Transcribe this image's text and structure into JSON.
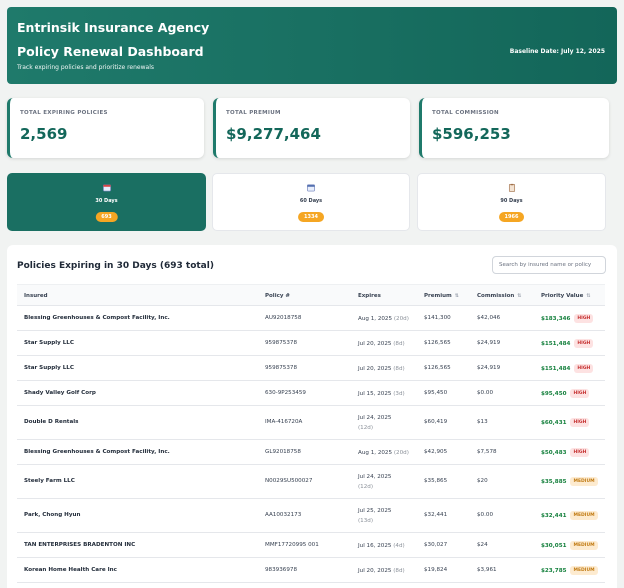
{
  "header": {
    "agency": "Entrinsik Insurance Agency",
    "title": "Policy Renewal Dashboard",
    "subtitle": "Track expiring policies and prioritize renewals",
    "baseline": "Baseline Date: July 12, 2025"
  },
  "stats": [
    {
      "label": "TOTAL EXPIRING POLICIES",
      "value": "2,569"
    },
    {
      "label": "TOTAL PREMIUM",
      "value": "$9,277,464"
    },
    {
      "label": "TOTAL COMMISSION",
      "value": "$596,253"
    }
  ],
  "tabs": [
    {
      "label": "30 Days",
      "count": "693",
      "icon": "calendar-icon",
      "active": true
    },
    {
      "label": "60 Days",
      "count": "1334",
      "icon": "calendar-icon",
      "active": false
    },
    {
      "label": "90 Days",
      "count": "1966",
      "icon": "clipboard-icon",
      "active": false
    }
  ],
  "table": {
    "title": "Policies Expiring in 30 Days (693 total)",
    "search_placeholder": "Search by insured name or policy",
    "columns": [
      "Insured",
      "Policy #",
      "Expires",
      "Premium",
      "Commission",
      "Priority Value"
    ],
    "sort_icon": "⇅",
    "rows": [
      {
        "insured": "Blessing Greenhouses & Compost Facility, Inc.",
        "policy": "AU92018758",
        "date": "Aug 1, 2025",
        "rel": "(20d)",
        "premium": "$141,300",
        "commission": "$42,046",
        "priority": "$183,346",
        "level": "HIGH"
      },
      {
        "insured": "Star Supply LLC",
        "policy": "959875378",
        "date": "Jul 20, 2025",
        "rel": "(8d)",
        "premium": "$126,565",
        "commission": "$24,919",
        "priority": "$151,484",
        "level": "HIGH"
      },
      {
        "insured": "Star Supply LLC",
        "policy": "959875378",
        "date": "Jul 20, 2025",
        "rel": "(8d)",
        "premium": "$126,565",
        "commission": "$24,919",
        "priority": "$151,484",
        "level": "HIGH"
      },
      {
        "insured": "Shady Valley Golf Corp",
        "policy": "630-9P253459",
        "date": "Jul 15, 2025",
        "rel": "(3d)",
        "premium": "$95,450",
        "commission": "$0.00",
        "priority": "$95,450",
        "level": "HIGH"
      },
      {
        "insured": "Double D Rentals",
        "policy": "IMA-416720A",
        "date": "Jul 24, 2025",
        "rel": "(12d)",
        "premium": "$60,419",
        "commission": "$13",
        "priority": "$60,431",
        "level": "HIGH"
      },
      {
        "insured": "Blessing Greenhouses & Compost Facility, Inc.",
        "policy": "GL92018758",
        "date": "Aug 1, 2025",
        "rel": "(20d)",
        "premium": "$42,905",
        "commission": "$7,578",
        "priority": "$50,483",
        "level": "HIGH"
      },
      {
        "insured": "Steely Farm LLC",
        "policy": "N0029SU500027",
        "date": "Jul 24, 2025",
        "rel": "(12d)",
        "premium": "$35,865",
        "commission": "$20",
        "priority": "$35,885",
        "level": "MEDIUM"
      },
      {
        "insured": "Park, Chong Hyun",
        "policy": "AA10032173",
        "date": "Jul 25, 2025",
        "rel": "(13d)",
        "premium": "$32,441",
        "commission": "$0.00",
        "priority": "$32,441",
        "level": "MEDIUM"
      },
      {
        "insured": "TAN ENTERPRISES BRADENTON INC",
        "policy": "MMF17720995 001",
        "date": "Jul 16, 2025",
        "rel": "(4d)",
        "premium": "$30,027",
        "commission": "$24",
        "priority": "$30,051",
        "level": "MEDIUM"
      },
      {
        "insured": "Korean Home Health Care Inc",
        "policy": "983936978",
        "date": "Jul 20, 2025",
        "rel": "(8d)",
        "premium": "$19,824",
        "commission": "$3,961",
        "priority": "$23,785",
        "level": "MEDIUM"
      }
    ]
  },
  "colors": {
    "accent": "#1a6f62",
    "badge": "#f5a623",
    "priority": "#15803d",
    "high": "#c53030",
    "medium": "#c07a12"
  }
}
